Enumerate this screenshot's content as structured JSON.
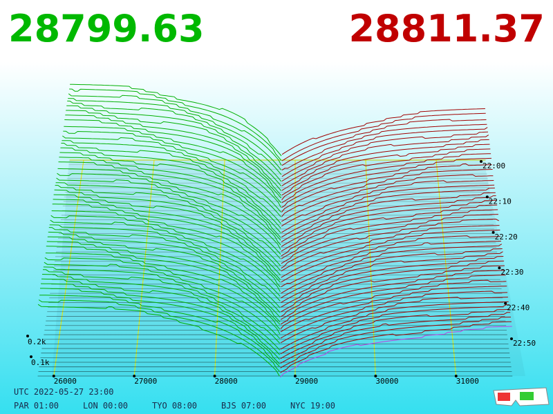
{
  "header": {
    "bid": "28799.63",
    "ask": "28811.37"
  },
  "price_axis": {
    "ticks": [
      26000,
      27000,
      28000,
      29000,
      30000,
      31000
    ]
  },
  "time_axis": {
    "ticks": [
      "22:00",
      "22:10",
      "22:20",
      "22:30",
      "22:40",
      "22:50"
    ]
  },
  "depth_axis": {
    "ticks": [
      "0.2k",
      "0.1k"
    ]
  },
  "footer": {
    "utc": "UTC 2022-05-27 23:00",
    "zones": [
      "PAR 01:00",
      "LON 00:00",
      "TYO 08:00",
      "BJS 07:00",
      "NYC 19:00"
    ]
  }
}
